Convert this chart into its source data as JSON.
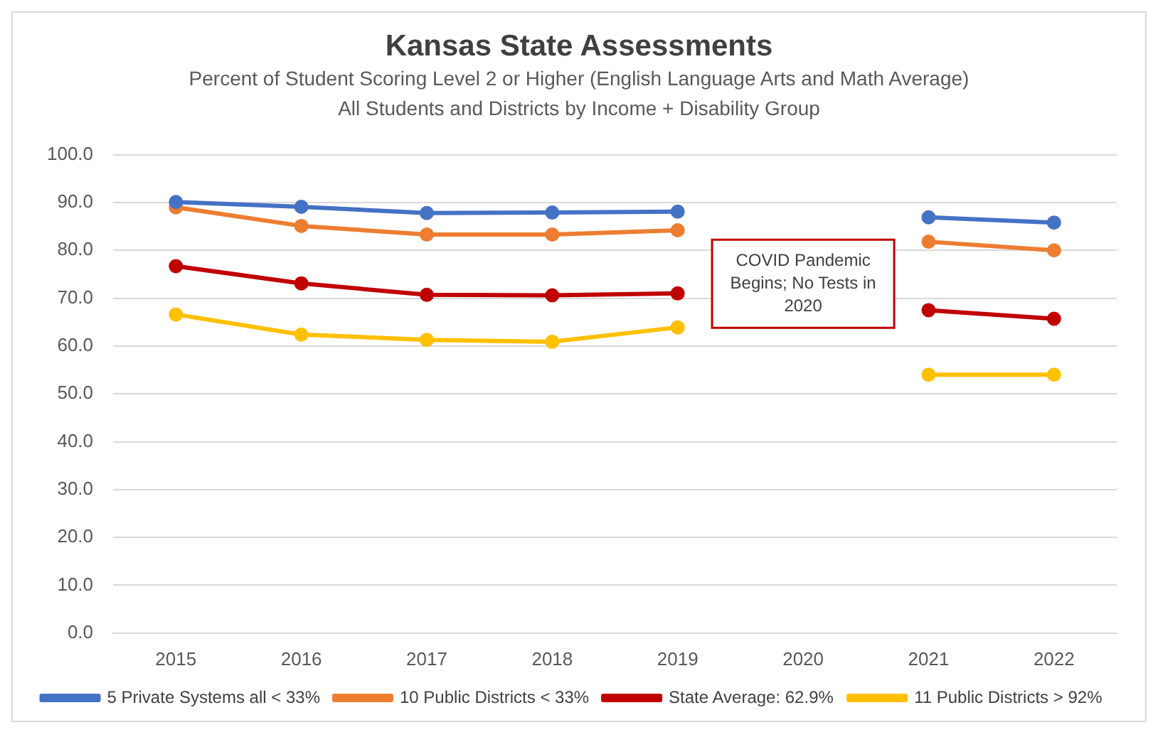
{
  "chart_data": {
    "type": "line",
    "title": "Kansas State Assessments",
    "subtitle": "Percent of Student Scoring Level 2 or Higher (English Language Arts and Math Average)\nAll  Students and Districts by Income + Disability Group",
    "categories": [
      "2015",
      "2016",
      "2017",
      "2018",
      "2019",
      "2020",
      "2021",
      "2022"
    ],
    "series": [
      {
        "name": "5 Private Systems all < 33%",
        "color": "#4472c4",
        "values": [
          90.1,
          89.1,
          87.8,
          87.9,
          88.1,
          null,
          86.9,
          85.8
        ]
      },
      {
        "name": "10 Public Districts < 33%",
        "color": "#ed7d31",
        "values": [
          89.0,
          85.1,
          83.3,
          83.3,
          84.2,
          null,
          81.8,
          80.0
        ]
      },
      {
        "name": "State Average: 62.9%",
        "color": "#c00000",
        "values": [
          76.7,
          73.1,
          70.7,
          70.6,
          71.0,
          null,
          67.5,
          65.7
        ]
      },
      {
        "name": "11 Public Districts > 92%",
        "color": "#ffc000",
        "values": [
          66.6,
          62.4,
          61.3,
          60.9,
          63.9,
          null,
          54.0,
          54.0
        ]
      }
    ],
    "ylim": [
      0,
      100
    ],
    "yticks": [
      {
        "value": 0,
        "label": "0.0"
      },
      {
        "value": 10,
        "label": "10.0"
      },
      {
        "value": 20,
        "label": "20.0"
      },
      {
        "value": 30,
        "label": "30.0"
      },
      {
        "value": 40,
        "label": "40.0"
      },
      {
        "value": 50,
        "label": "50.0"
      },
      {
        "value": 60,
        "label": "60.0"
      },
      {
        "value": 70,
        "label": "70.0"
      },
      {
        "value": 80,
        "label": "80.0"
      },
      {
        "value": 90,
        "label": "90.0"
      },
      {
        "value": 100,
        "label": "100.0"
      }
    ],
    "grid": "y",
    "legend": "bottom",
    "marker": "circle",
    "line_style": "solid",
    "annotations": [
      "COVID Pandemic Begins; No Tests in 2020"
    ]
  }
}
